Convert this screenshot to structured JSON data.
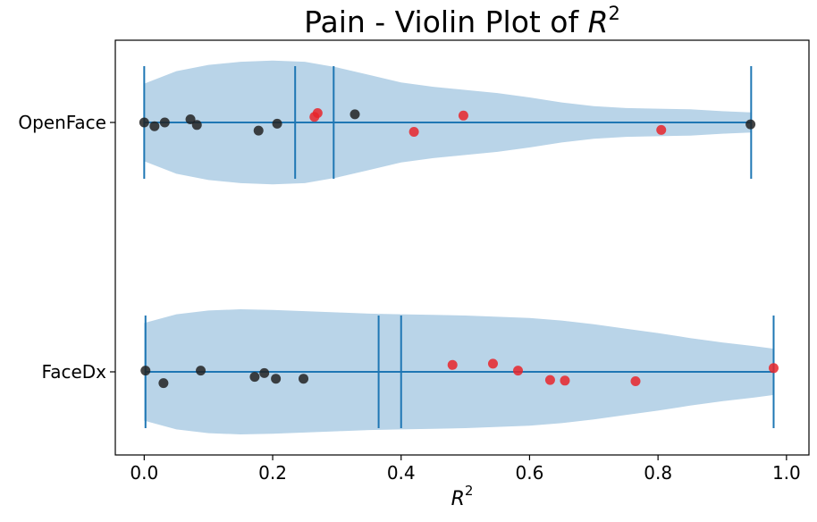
{
  "chart_data": {
    "type": "violin",
    "title_prefix": "Pain - Violin Plot of ",
    "title_math": "R",
    "title_sup": "2",
    "xlabel_math": "R",
    "xlabel_sup": "2",
    "xlim": [
      -0.045,
      1.035
    ],
    "xticks": [
      0.0,
      0.2,
      0.4,
      0.6,
      0.8,
      1.0
    ],
    "xtick_labels": [
      "0.0",
      "0.2",
      "0.4",
      "0.6",
      "0.8",
      "1.0"
    ],
    "grid": false,
    "colors": {
      "violin_fill": "#b9d4e8",
      "violin_lines": "#1f77b4",
      "dark_points": "#222222",
      "red_points": "#e8252a"
    },
    "categories": [
      {
        "name": "OpenFace",
        "min": 0.0,
        "max": 0.945,
        "mean": 0.295,
        "median": 0.235,
        "density": [
          [
            0.0,
            0.62
          ],
          [
            0.05,
            0.82
          ],
          [
            0.1,
            0.92
          ],
          [
            0.15,
            0.97
          ],
          [
            0.2,
            0.99
          ],
          [
            0.25,
            0.97
          ],
          [
            0.3,
            0.88
          ],
          [
            0.35,
            0.76
          ],
          [
            0.4,
            0.64
          ],
          [
            0.45,
            0.57
          ],
          [
            0.5,
            0.52
          ],
          [
            0.55,
            0.47
          ],
          [
            0.6,
            0.4
          ],
          [
            0.65,
            0.32
          ],
          [
            0.7,
            0.26
          ],
          [
            0.75,
            0.23
          ],
          [
            0.8,
            0.22
          ],
          [
            0.85,
            0.21
          ],
          [
            0.9,
            0.18
          ],
          [
            0.945,
            0.16
          ]
        ],
        "points": [
          {
            "x": 0.0,
            "dy": 0.0,
            "c": "dark"
          },
          {
            "x": 0.016,
            "dy": -0.06,
            "c": "dark"
          },
          {
            "x": 0.032,
            "dy": 0.0,
            "c": "dark"
          },
          {
            "x": 0.072,
            "dy": 0.05,
            "c": "dark"
          },
          {
            "x": 0.082,
            "dy": -0.04,
            "c": "dark"
          },
          {
            "x": 0.178,
            "dy": -0.13,
            "c": "dark"
          },
          {
            "x": 0.207,
            "dy": -0.02,
            "c": "dark"
          },
          {
            "x": 0.265,
            "dy": 0.09,
            "c": "red"
          },
          {
            "x": 0.27,
            "dy": 0.15,
            "c": "red"
          },
          {
            "x": 0.328,
            "dy": 0.13,
            "c": "dark"
          },
          {
            "x": 0.42,
            "dy": -0.15,
            "c": "red"
          },
          {
            "x": 0.497,
            "dy": 0.11,
            "c": "red"
          },
          {
            "x": 0.805,
            "dy": -0.12,
            "c": "red"
          },
          {
            "x": 0.944,
            "dy": -0.03,
            "c": "dark"
          }
        ]
      },
      {
        "name": "FaceDx",
        "min": 0.002,
        "max": 0.98,
        "mean": 0.4,
        "median": 0.365,
        "density": [
          [
            0.0,
            0.78
          ],
          [
            0.05,
            0.92
          ],
          [
            0.1,
            0.98
          ],
          [
            0.15,
            1.0
          ],
          [
            0.2,
            0.99
          ],
          [
            0.25,
            0.97
          ],
          [
            0.3,
            0.95
          ],
          [
            0.35,
            0.93
          ],
          [
            0.4,
            0.92
          ],
          [
            0.45,
            0.91
          ],
          [
            0.5,
            0.9
          ],
          [
            0.55,
            0.88
          ],
          [
            0.6,
            0.86
          ],
          [
            0.65,
            0.82
          ],
          [
            0.7,
            0.76
          ],
          [
            0.75,
            0.69
          ],
          [
            0.8,
            0.62
          ],
          [
            0.85,
            0.54
          ],
          [
            0.9,
            0.47
          ],
          [
            0.95,
            0.41
          ],
          [
            0.98,
            0.37
          ]
        ],
        "points": [
          {
            "x": 0.002,
            "dy": 0.02,
            "c": "dark"
          },
          {
            "x": 0.03,
            "dy": -0.18,
            "c": "dark"
          },
          {
            "x": 0.088,
            "dy": 0.02,
            "c": "dark"
          },
          {
            "x": 0.172,
            "dy": -0.08,
            "c": "dark"
          },
          {
            "x": 0.187,
            "dy": -0.02,
            "c": "dark"
          },
          {
            "x": 0.205,
            "dy": -0.11,
            "c": "dark"
          },
          {
            "x": 0.248,
            "dy": -0.11,
            "c": "dark"
          },
          {
            "x": 0.48,
            "dy": 0.11,
            "c": "red"
          },
          {
            "x": 0.543,
            "dy": 0.13,
            "c": "red"
          },
          {
            "x": 0.582,
            "dy": 0.02,
            "c": "red"
          },
          {
            "x": 0.632,
            "dy": -0.13,
            "c": "red"
          },
          {
            "x": 0.655,
            "dy": -0.14,
            "c": "red"
          },
          {
            "x": 0.765,
            "dy": -0.15,
            "c": "red"
          },
          {
            "x": 0.98,
            "dy": 0.06,
            "c": "red"
          }
        ]
      }
    ]
  }
}
